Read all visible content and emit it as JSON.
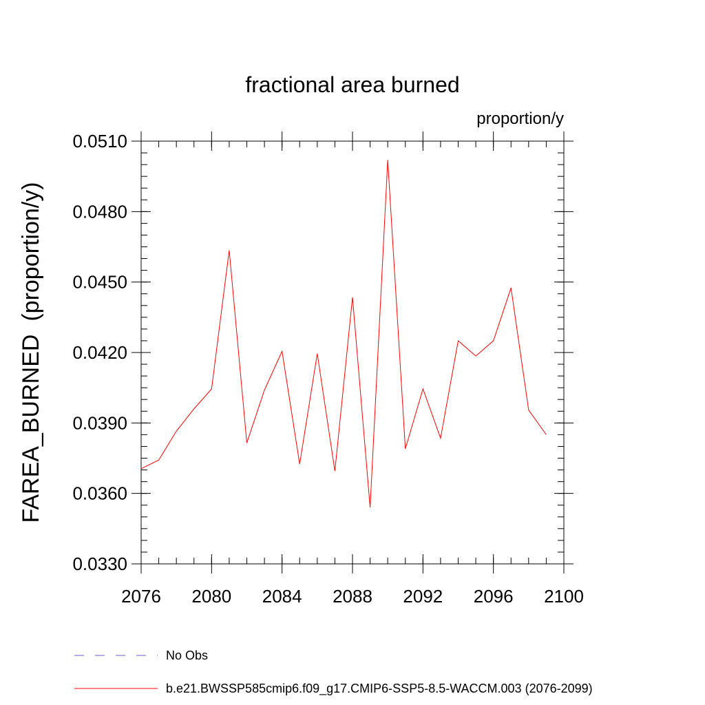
{
  "chart_data": {
    "type": "line",
    "title": "fractional area burned",
    "units_label": "proportion/y",
    "ylabel": "FAREA_BURNED  (proportion/y)",
    "xlabel": "",
    "xlim": [
      2076,
      2100
    ],
    "ylim": [
      0.033,
      0.051
    ],
    "x_ticks": [
      2076,
      2080,
      2084,
      2088,
      2092,
      2096,
      2100
    ],
    "x_tick_labels": [
      "2076",
      "2080",
      "2084",
      "2088",
      "2092",
      "2096",
      "2100"
    ],
    "y_ticks": [
      0.033,
      0.036,
      0.039,
      0.042,
      0.045,
      0.048,
      0.051
    ],
    "y_tick_labels": [
      "0.0330",
      "0.0360",
      "0.0390",
      "0.0420",
      "0.0450",
      "0.0480",
      "0.0510"
    ],
    "grid": false,
    "legend_position": "bottom",
    "series": [
      {
        "name": "b.e21.BWSSP585cmip6.f09_g17.CMIP6-SSP5-8.5-WACCM.003 (2076-2099)",
        "color": "#ff0000",
        "style": "solid",
        "x": [
          2076,
          2077,
          2078,
          2079,
          2080,
          2081,
          2082,
          2083,
          2084,
          2085,
          2086,
          2087,
          2088,
          2089,
          2090,
          2091,
          2092,
          2093,
          2094,
          2095,
          2096,
          2097,
          2098,
          2099
        ],
        "y": [
          0.03705,
          0.03742,
          0.03865,
          0.0396,
          0.04045,
          0.04635,
          0.03815,
          0.0404,
          0.04205,
          0.03725,
          0.04195,
          0.03695,
          0.04435,
          0.0354,
          0.0502,
          0.0379,
          0.04045,
          0.03835,
          0.0425,
          0.04185,
          0.0425,
          0.04475,
          0.03955,
          0.0385
        ]
      }
    ],
    "legend": [
      {
        "label": "No Obs",
        "color": "#6a5acd",
        "style": "dashed"
      },
      {
        "label": "b.e21.BWSSP585cmip6.f09_g17.CMIP6-SSP5-8.5-WACCM.003 (2076-2099)",
        "color": "#ff0000",
        "style": "solid"
      }
    ]
  }
}
